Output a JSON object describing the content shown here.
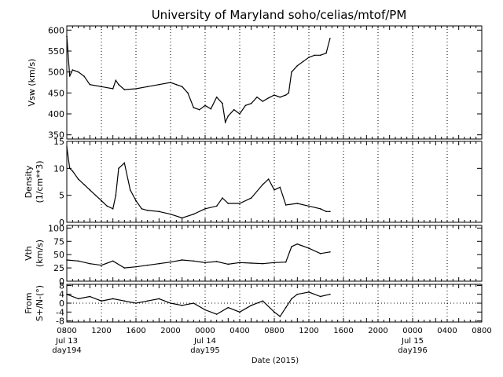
{
  "figure": {
    "title": "University of Maryland  soho/celias/mtof/PM",
    "x_axis_label": "Date (2015)",
    "x_tick_labels": [
      "0800",
      "1200",
      "1600",
      "2000",
      "0000",
      "0400",
      "0800",
      "1200",
      "1600",
      "2000",
      "0000",
      "0400",
      "0800"
    ],
    "date_labels": [
      {
        "line1": "Jul 13",
        "line2": "day194"
      },
      {
        "line1": "Jul 14",
        "line2": "day195"
      },
      {
        "line1": "Jul 15",
        "line2": "day196"
      }
    ]
  },
  "panels": [
    {
      "ylabel_lines": [
        "Vsw (km/s)"
      ],
      "ticks": [
        "350",
        "400",
        "450",
        "500",
        "550",
        "600"
      ]
    },
    {
      "ylabel_lines": [
        "Density",
        "(1/cm**3)"
      ],
      "ticks": [
        "0",
        "5",
        "10",
        "15"
      ]
    },
    {
      "ylabel_lines": [
        "Vth",
        "(km/s)"
      ],
      "ticks": [
        "0",
        "25",
        "50",
        "75",
        "100"
      ]
    },
    {
      "ylabel_lines": [
        "From",
        "S+/N-(°)"
      ],
      "ticks": [
        "-8",
        "-4",
        "0",
        "4",
        "8"
      ]
    }
  ],
  "colors": {
    "line": "#000000",
    "background": "#ffffff",
    "grid": "#000000"
  },
  "chart_data": [
    {
      "type": "line",
      "title": "University of Maryland  soho/celias/mtof/PM",
      "ylabel": "Vsw (km/s)",
      "xlabel": "Date (2015)",
      "x_range": [
        "2015-07-13 08:00",
        "2015-07-16 08:00"
      ],
      "ylim": [
        340,
        610
      ],
      "grid": "dotted vertical at 4-hour ticks",
      "series": [
        {
          "x": [
            "2015-07-13 08:00",
            "2015-07-13 08:30",
            "2015-07-13 09:00",
            "2015-07-13 10:00",
            "2015-07-13 11:00",
            "2015-07-13 12:00",
            "2015-07-13 14:00",
            "2015-07-13 16:00",
            "2015-07-13 16:30",
            "2015-07-13 17:00",
            "2015-07-13 18:00",
            "2015-07-13 20:00",
            "2015-07-13 22:00",
            "2015-07-14 00:00",
            "2015-07-14 02:00",
            "2015-07-14 03:00",
            "2015-07-14 04:00",
            "2015-07-14 05:00",
            "2015-07-14 06:00",
            "2015-07-14 07:00",
            "2015-07-14 08:00",
            "2015-07-14 09:00",
            "2015-07-14 10:00",
            "2015-07-14 11:00",
            "2015-07-14 11:30",
            "2015-07-14 12:00",
            "2015-07-14 13:00",
            "2015-07-14 14:00",
            "2015-07-14 15:00",
            "2015-07-14 16:00",
            "2015-07-14 17:00",
            "2015-07-14 18:00",
            "2015-07-14 19:00",
            "2015-07-14 20:00",
            "2015-07-14 21:00",
            "2015-07-14 22:00",
            "2015-07-14 22:30",
            "2015-07-14 23:00",
            "2015-07-15 00:00",
            "2015-07-15 01:00",
            "2015-07-15 02:00",
            "2015-07-15 03:00",
            "2015-07-15 04:00",
            "2015-07-15 05:00",
            "2015-07-15 05:40"
          ],
          "values": [
            585,
            490,
            505,
            500,
            490,
            470,
            465,
            460,
            480,
            470,
            458,
            460,
            465,
            470,
            475,
            470,
            465,
            450,
            415,
            410,
            420,
            412,
            440,
            425,
            380,
            395,
            410,
            400,
            420,
            425,
            440,
            430,
            438,
            445,
            440,
            445,
            450,
            500,
            515,
            525,
            535,
            540,
            540,
            545,
            580
          ]
        }
      ]
    },
    {
      "type": "line",
      "ylabel": "Density (1/cm**3)",
      "ylim": [
        0,
        15
      ],
      "series": [
        {
          "x": [
            "2015-07-13 08:00",
            "2015-07-13 08:30",
            "2015-07-13 09:00",
            "2015-07-13 10:00",
            "2015-07-13 11:00",
            "2015-07-13 12:00",
            "2015-07-13 13:00",
            "2015-07-13 14:00",
            "2015-07-13 15:00",
            "2015-07-13 16:00",
            "2015-07-13 16:30",
            "2015-07-13 17:00",
            "2015-07-13 18:00",
            "2015-07-13 19:00",
            "2015-07-13 20:00",
            "2015-07-13 21:00",
            "2015-07-13 22:00",
            "2015-07-14 00:00",
            "2015-07-14 02:00",
            "2015-07-14 04:00",
            "2015-07-14 06:00",
            "2015-07-14 08:00",
            "2015-07-14 10:00",
            "2015-07-14 11:00",
            "2015-07-14 12:00",
            "2015-07-14 14:00",
            "2015-07-14 16:00",
            "2015-07-14 18:00",
            "2015-07-14 19:00",
            "2015-07-14 20:00",
            "2015-07-14 21:00",
            "2015-07-14 22:00",
            "2015-07-15 00:00",
            "2015-07-15 02:00",
            "2015-07-15 04:00",
            "2015-07-15 05:00",
            "2015-07-15 05:40"
          ],
          "values": [
            14,
            10,
            9.5,
            8,
            7,
            6,
            5,
            4,
            3,
            2.5,
            5,
            10,
            11,
            6,
            4,
            2.5,
            2.2,
            2,
            1.5,
            0.8,
            1.5,
            2.5,
            3,
            4.5,
            3.5,
            3.5,
            4.5,
            7,
            8,
            6,
            6.5,
            3.2,
            3.5,
            3,
            2.5,
            2,
            2
          ]
        }
      ]
    },
    {
      "type": "line",
      "ylabel": "Vth (km/s)",
      "ylim": [
        0,
        105
      ],
      "series": [
        {
          "x": [
            "2015-07-13 08:00",
            "2015-07-13 10:00",
            "2015-07-13 12:00",
            "2015-07-13 14:00",
            "2015-07-13 16:00",
            "2015-07-13 18:00",
            "2015-07-13 20:00",
            "2015-07-13 22:00",
            "2015-07-14 00:00",
            "2015-07-14 02:00",
            "2015-07-14 04:00",
            "2015-07-14 06:00",
            "2015-07-14 08:00",
            "2015-07-14 10:00",
            "2015-07-14 12:00",
            "2015-07-14 14:00",
            "2015-07-14 16:00",
            "2015-07-14 18:00",
            "2015-07-14 20:00",
            "2015-07-14 22:00",
            "2015-07-14 23:00",
            "2015-07-15 00:00",
            "2015-07-15 02:00",
            "2015-07-15 04:00",
            "2015-07-15 05:40"
          ],
          "values": [
            40,
            38,
            33,
            30,
            38,
            25,
            27,
            30,
            33,
            36,
            40,
            38,
            35,
            37,
            32,
            35,
            34,
            33,
            35,
            36,
            65,
            70,
            62,
            52,
            55
          ]
        }
      ]
    },
    {
      "type": "line",
      "ylabel": "From S+/N-(°)",
      "ylim": [
        -8.5,
        8.5
      ],
      "series": [
        {
          "x": [
            "2015-07-13 08:00",
            "2015-07-13 10:00",
            "2015-07-13 12:00",
            "2015-07-13 14:00",
            "2015-07-13 16:00",
            "2015-07-13 18:00",
            "2015-07-13 20:00",
            "2015-07-13 22:00",
            "2015-07-14 00:00",
            "2015-07-14 02:00",
            "2015-07-14 04:00",
            "2015-07-14 06:00",
            "2015-07-14 08:00",
            "2015-07-14 10:00",
            "2015-07-14 12:00",
            "2015-07-14 14:00",
            "2015-07-14 16:00",
            "2015-07-14 18:00",
            "2015-07-14 20:00",
            "2015-07-14 21:00",
            "2015-07-14 22:00",
            "2015-07-14 23:00",
            "2015-07-15 00:00",
            "2015-07-15 02:00",
            "2015-07-15 04:00",
            "2015-07-15 05:40"
          ],
          "values": [
            4,
            2,
            3,
            1,
            2,
            1,
            0,
            1,
            2,
            0,
            -1,
            0,
            -3,
            -5,
            -2,
            -4,
            -1,
            1,
            -4,
            -6,
            -2,
            2,
            4,
            5,
            3,
            4
          ]
        }
      ]
    }
  ]
}
